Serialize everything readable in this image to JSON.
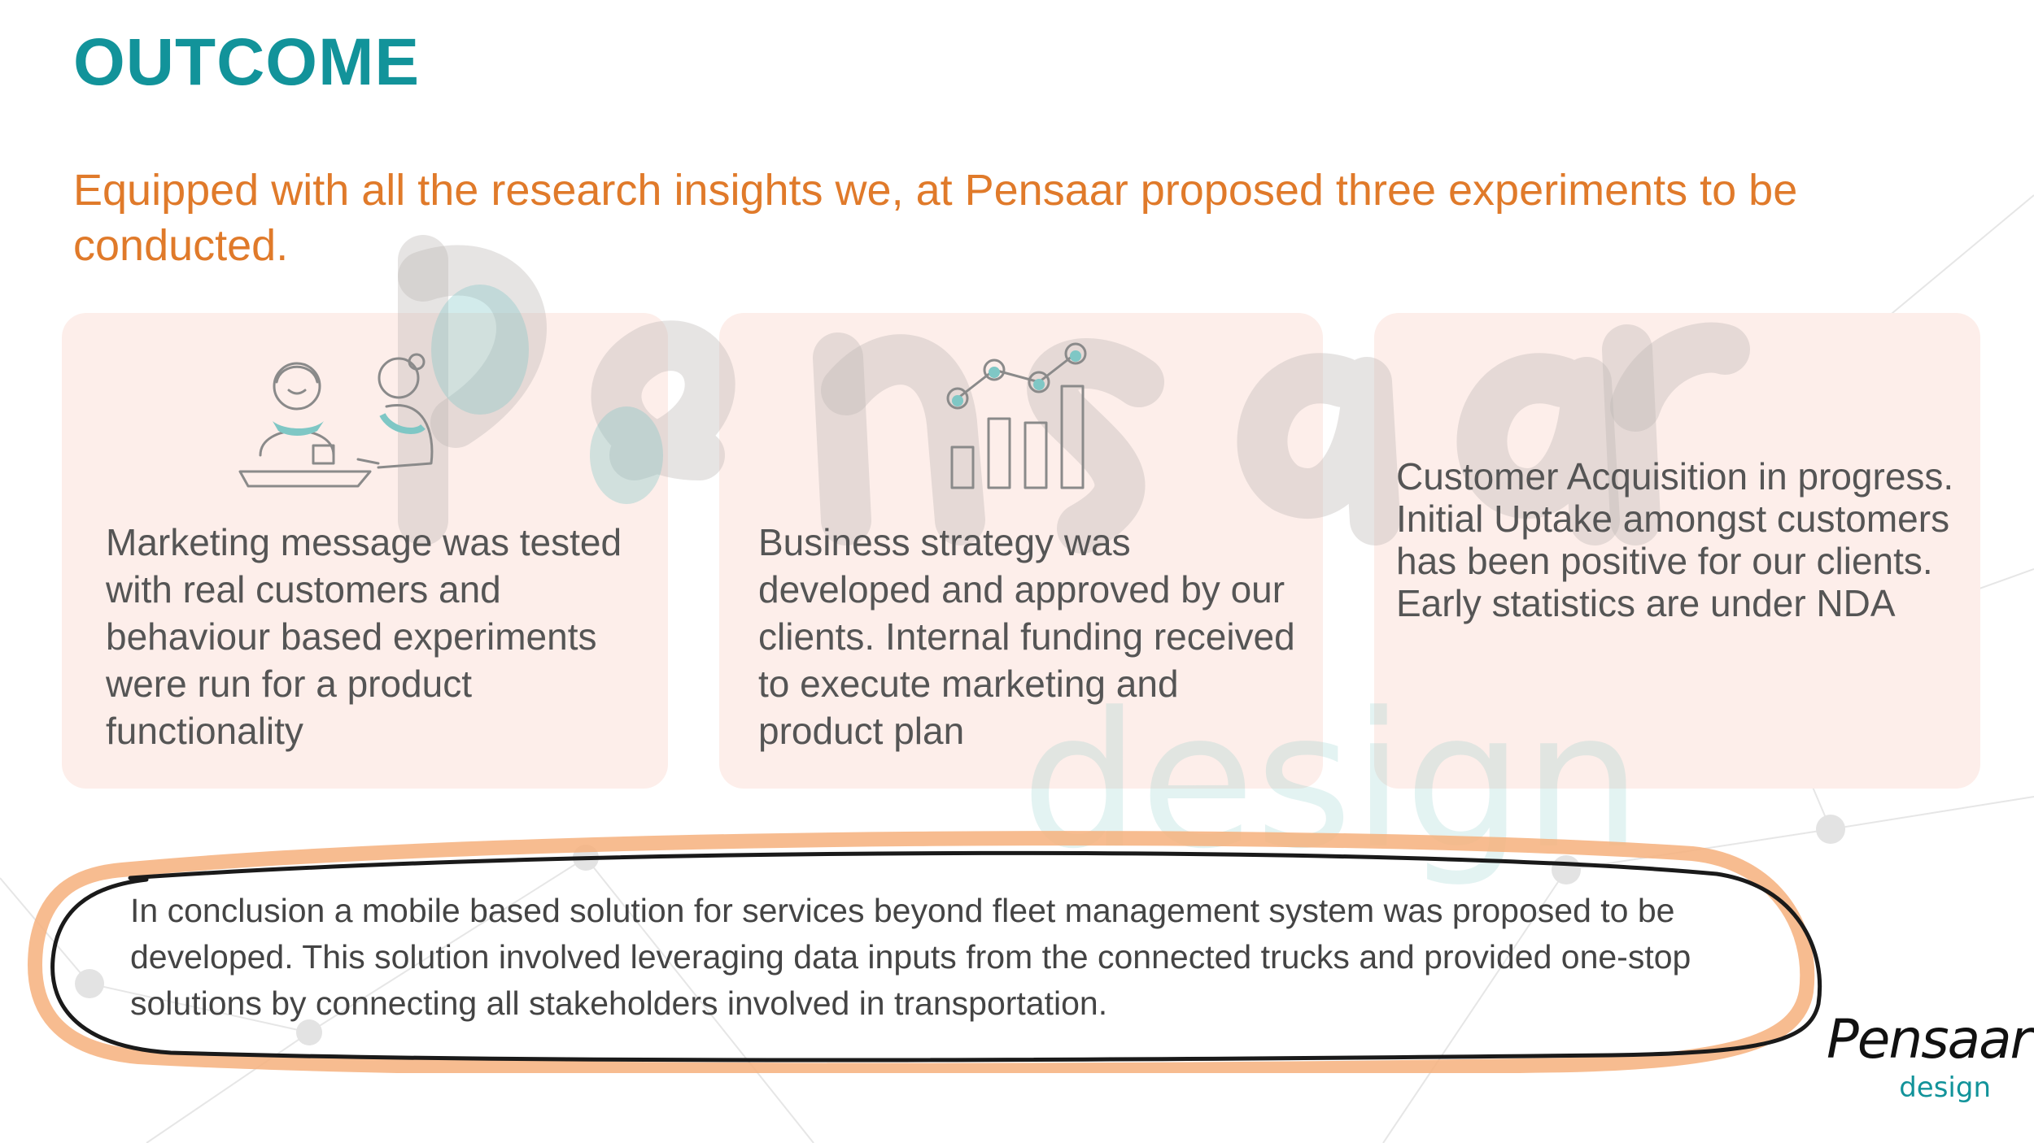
{
  "slide": {
    "title": "OUTCOME",
    "subtitle": "Equipped with all the research insights we, at Pensaar proposed three experiments to be conducted."
  },
  "cards": [
    {
      "icon": "customers-testing-icon",
      "text": "Marketing message was tested with real customers and behaviour based experiments were run for a product functionality"
    },
    {
      "icon": "growth-chart-icon",
      "text": "Business strategy was developed and approved by our clients. Internal funding received to execute marketing and product plan"
    },
    {
      "icon": "",
      "text": "Customer Acquisition in progress. Initial Uptake amongst customers has been positive for our clients. Early statistics are under NDA"
    }
  ],
  "conclusion": {
    "text": "In conclusion a mobile based solution for services beyond fleet management system was proposed to be developed. This solution involved leveraging data inputs from the connected trucks and provided one-stop solutions by connecting all stakeholders involved in transportation."
  },
  "logo": {
    "word": "Pensaar",
    "sub": "design"
  },
  "colors": {
    "title": "#12939a",
    "subtitle": "#e07a2a",
    "card_bg": "#fdeeea",
    "accent_ring": "#f6b07c",
    "teal": "#7fc7c5"
  }
}
